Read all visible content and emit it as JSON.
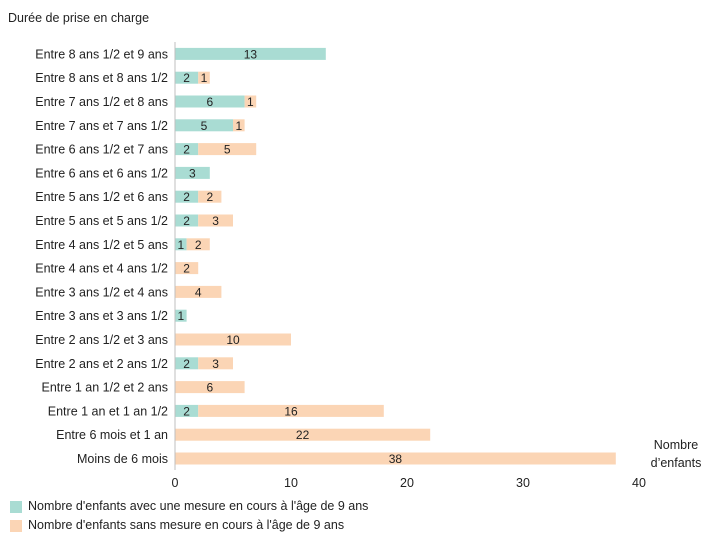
{
  "chart_data": {
    "type": "bar",
    "orientation": "horizontal",
    "stacked": true,
    "ylabel": "Durée de prise en charge",
    "xlabel_lines": [
      "Nombre",
      "d’enfants"
    ],
    "xlim": [
      0,
      40
    ],
    "xticks": [
      0,
      10,
      20,
      30,
      40
    ],
    "grid": false,
    "legend_position": "bottom-left",
    "categories": [
      "Entre 8 ans 1/2 et 9 ans",
      "Entre 8 ans et 8 ans 1/2",
      "Entre 7 ans 1/2 et 8 ans",
      "Entre 7 ans et 7 ans 1/2",
      "Entre 6 ans 1/2 et 7 ans",
      "Entre 6 ans et 6 ans 1/2",
      "Entre 5 ans 1/2 et 6 ans",
      "Entre 5 ans et 5 ans 1/2",
      "Entre 4 ans 1/2 et 5 ans",
      "Entre 4 ans et 4 ans 1/2",
      "Entre 3 ans 1/2 et 4 ans",
      "Entre 3 ans et 3 ans 1/2",
      "Entre 2 ans 1/2 et 3 ans",
      "Entre 2 ans et 2 ans 1/2",
      "Entre 1 an 1/2 et 2 ans",
      "Entre 1 an et 1 an 1/2",
      "Entre 6 mois et 1 an",
      "Moins de 6 mois"
    ],
    "series": [
      {
        "name": "Nombre d'enfants avec une mesure en cours à l'âge de 9 ans",
        "color": "#a9dcd3",
        "values": [
          13,
          2,
          6,
          5,
          2,
          3,
          2,
          2,
          1,
          0,
          0,
          1,
          0,
          2,
          0,
          2,
          0,
          0
        ]
      },
      {
        "name": "Nombre d'enfants sans mesure en cours à l'âge de 9 ans",
        "color": "#fbd5b5",
        "values": [
          0,
          1,
          1,
          1,
          5,
          0,
          2,
          3,
          2,
          2,
          4,
          0,
          10,
          3,
          6,
          16,
          22,
          38
        ]
      }
    ]
  }
}
